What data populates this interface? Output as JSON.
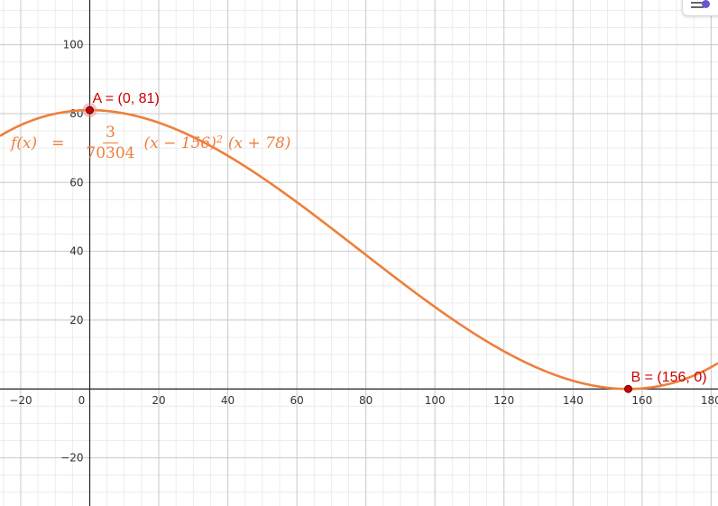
{
  "chart_data": {
    "type": "line",
    "title": "",
    "xlabel": "",
    "ylabel": "",
    "xlim": [
      -26,
      182
    ],
    "ylim": [
      -34,
      113
    ],
    "x_ticks": [
      -20,
      0,
      20,
      40,
      60,
      80,
      100,
      120,
      140,
      160,
      180
    ],
    "y_ticks": [
      -20,
      20,
      40,
      60,
      80,
      100
    ],
    "x_tick_labels": [
      "−20",
      "0",
      "20",
      "40",
      "60",
      "80",
      "100",
      "120",
      "140",
      "160",
      "180"
    ],
    "y_tick_labels": [
      "−20",
      "20",
      "40",
      "60",
      "80",
      "100"
    ],
    "grid": true,
    "series": [
      {
        "name": "f",
        "color": "#ee7f3b",
        "function": {
          "coefficient": 4.26718e-05,
          "root1": 156,
          "root2": -78
        },
        "label": {
          "lhs": "f(x)",
          "equals": "=",
          "numerator": "3",
          "denominator": "70304",
          "factor1": "(x − 156)",
          "exponent": "2",
          "factor2": "(x + 78)"
        }
      }
    ],
    "points": [
      {
        "name": "A",
        "x": 0,
        "y": 81,
        "label": "A = (0, 81)",
        "color": "#cc0000"
      },
      {
        "name": "B",
        "x": 156,
        "y": 0,
        "label": "B = (156, 0)",
        "color": "#cc0000"
      }
    ]
  },
  "ui": {
    "settings_icon": "graphics-settings-icon"
  }
}
